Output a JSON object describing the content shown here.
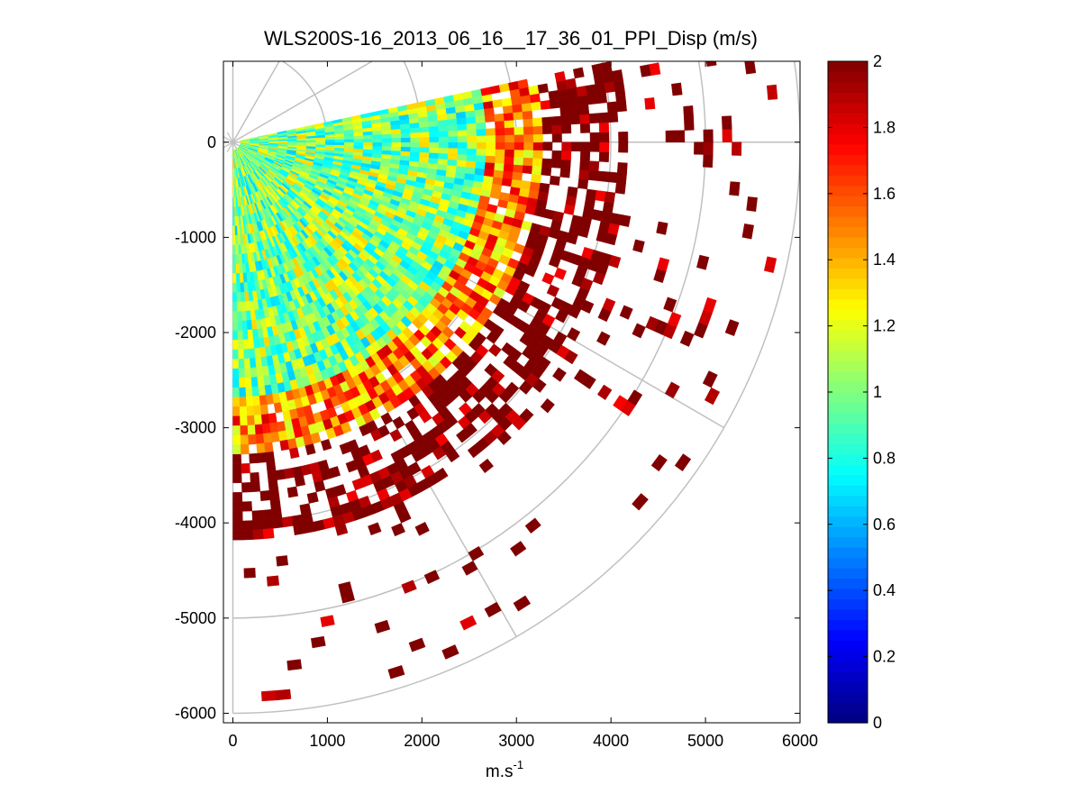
{
  "chart_data": {
    "type": "heatmap",
    "subtype": "polar-ppi-scan",
    "title": "WLS200S-16_2013_06_16__17_36_01_PPI_Disp (m/s)",
    "xlabel": "m.s",
    "xlabel_superscript": "-1",
    "ylabel": "",
    "xlim": [
      -100,
      6000
    ],
    "ylim": [
      -6100,
      850
    ],
    "x_ticks": [
      0,
      1000,
      2000,
      3000,
      4000,
      5000,
      6000
    ],
    "x_tick_labels": [
      "0",
      "1000",
      "2000",
      "3000",
      "4000",
      "5000",
      "6000"
    ],
    "y_ticks": [
      0,
      -1000,
      -2000,
      -3000,
      -4000,
      -5000,
      -6000
    ],
    "y_tick_labels": [
      "0",
      "-1000",
      "-2000",
      "-3000",
      "-4000",
      "-5000",
      "-6000"
    ],
    "polar_grid": {
      "ring_radii": [
        1000,
        2000,
        3000,
        4000,
        5000,
        6000
      ],
      "spoke_angles_deg": [
        0,
        -30,
        -60,
        30,
        60,
        90
      ],
      "ring_arc_from_deg": -90,
      "ring_arc_to_deg": 90
    },
    "scan": {
      "azimuth_from_deg": -90,
      "azimuth_to_deg": 11,
      "azimuth_step_deg": 1.5,
      "range_from_m": 80,
      "range_to_m": 5800,
      "range_gate_m": 100,
      "fill_fraction_regions": [
        {
          "r_from": 0,
          "r_to": 2600,
          "fraction": 1.0,
          "mean_value": 1.0
        },
        {
          "r_from": 2600,
          "r_to": 3200,
          "fraction": 0.9,
          "mean_value": 1.5
        },
        {
          "r_from": 3200,
          "r_to": 4100,
          "fraction": 0.6,
          "mean_value": 1.9
        },
        {
          "r_from": 4100,
          "r_to": 5800,
          "fraction": 0.08,
          "mean_value": 2.0
        }
      ]
    },
    "colorbar": {
      "colormap": "jet",
      "min": 0,
      "max": 2,
      "ticks": [
        0,
        0.2,
        0.4,
        0.6,
        0.8,
        1,
        1.2,
        1.4,
        1.6,
        1.8,
        2
      ],
      "tick_labels": [
        "0",
        "0.2",
        "0.4",
        "0.6",
        "0.8",
        "1",
        "1.2",
        "1.4",
        "1.6",
        "1.8",
        "2"
      ]
    },
    "colors": {
      "grid": "#c0c0c0",
      "axes": "#000000",
      "background": "#ffffff"
    }
  }
}
